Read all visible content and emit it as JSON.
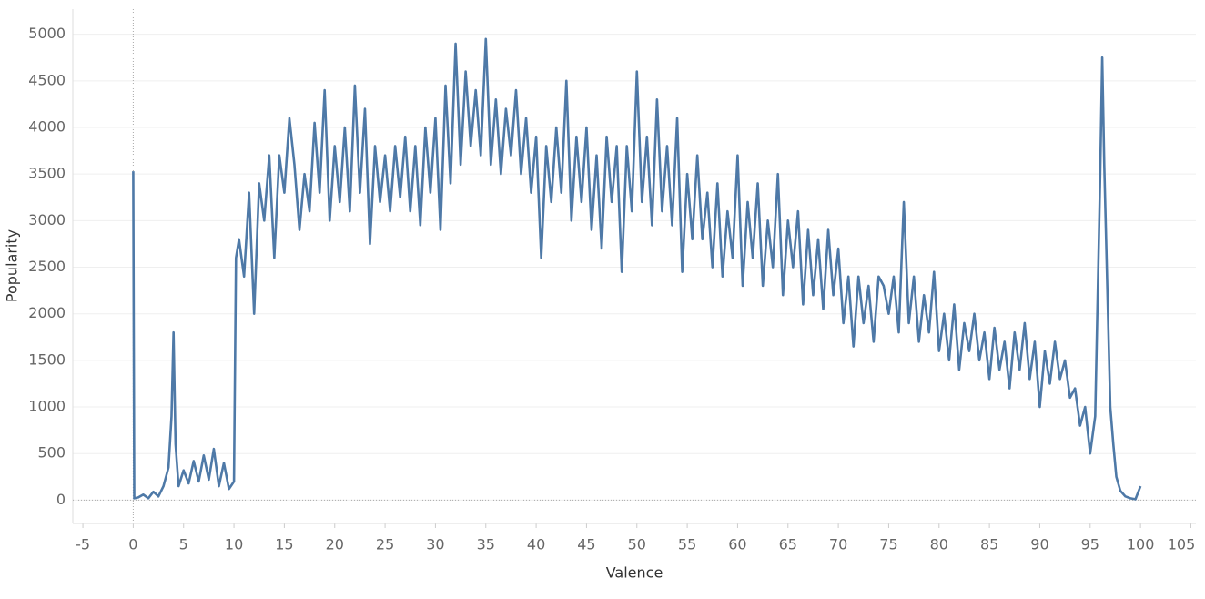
{
  "chart_data": {
    "type": "line",
    "x_label": "Valence",
    "y_label": "Popularity",
    "x": [
      0,
      0.1,
      0.5,
      1,
      1.5,
      2,
      2.5,
      3,
      3.5,
      3.8,
      4,
      4.2,
      4.5,
      5,
      5.5,
      6,
      6.5,
      7,
      7.5,
      8,
      8.5,
      9,
      9.5,
      10,
      10.2,
      10.5,
      11,
      11.5,
      12,
      12.5,
      13,
      13.5,
      14,
      14.5,
      15,
      15.5,
      16,
      16.5,
      17,
      17.5,
      18,
      18.5,
      19,
      19.5,
      20,
      20.5,
      21,
      21.5,
      22,
      22.5,
      23,
      23.5,
      24,
      24.5,
      25,
      25.5,
      26,
      26.5,
      27,
      27.5,
      28,
      28.5,
      29,
      29.5,
      30,
      30.5,
      31,
      31.5,
      32,
      32.5,
      33,
      33.5,
      34,
      34.5,
      35,
      35.5,
      36,
      36.5,
      37,
      37.5,
      38,
      38.5,
      39,
      39.5,
      40,
      40.5,
      41,
      41.5,
      42,
      42.5,
      43,
      43.5,
      44,
      44.5,
      45,
      45.5,
      46,
      46.5,
      47,
      47.5,
      48,
      48.5,
      49,
      49.5,
      50,
      50.5,
      51,
      51.5,
      52,
      52.5,
      53,
      53.5,
      54,
      54.5,
      55,
      55.5,
      56,
      56.5,
      57,
      57.5,
      58,
      58.5,
      59,
      59.5,
      60,
      60.5,
      61,
      61.5,
      62,
      62.5,
      63,
      63.5,
      64,
      64.5,
      65,
      65.5,
      66,
      66.5,
      67,
      67.5,
      68,
      68.5,
      69,
      69.5,
      70,
      70.5,
      71,
      71.5,
      72,
      72.5,
      73,
      73.5,
      74,
      74.5,
      75,
      75.5,
      76,
      76.5,
      77,
      77.5,
      78,
      78.5,
      79,
      79.5,
      80,
      80.5,
      81,
      81.5,
      82,
      82.5,
      83,
      83.5,
      84,
      84.5,
      85,
      85.5,
      86,
      86.5,
      87,
      87.5,
      88,
      88.5,
      89,
      89.5,
      90,
      90.5,
      91,
      91.5,
      92,
      92.5,
      93,
      93.5,
      94,
      94.5,
      95,
      95.5,
      96,
      96.2,
      96.4,
      96.7,
      97,
      97.3,
      97.6,
      98,
      98.5,
      99,
      99.5,
      100
    ],
    "series": [
      {
        "color": "#4e79a7",
        "values": [
          3530,
          20,
          30,
          60,
          20,
          90,
          40,
          150,
          350,
          900,
          1800,
          600,
          150,
          320,
          180,
          420,
          200,
          480,
          220,
          550,
          150,
          400,
          120,
          200,
          2600,
          2800,
          2400,
          3300,
          2000,
          3400,
          3000,
          3700,
          2600,
          3700,
          3300,
          4100,
          3600,
          2900,
          3500,
          3100,
          4050,
          3300,
          4400,
          3000,
          3800,
          3200,
          4000,
          3100,
          4450,
          3300,
          4200,
          2750,
          3800,
          3200,
          3700,
          3100,
          3800,
          3250,
          3900,
          3100,
          3800,
          2950,
          4000,
          3300,
          4100,
          2900,
          4450,
          3400,
          4900,
          3600,
          4600,
          3800,
          4400,
          3700,
          4950,
          3600,
          4300,
          3500,
          4200,
          3700,
          4400,
          3500,
          4100,
          3300,
          3900,
          2600,
          3800,
          3200,
          4000,
          3300,
          4500,
          3000,
          3900,
          3200,
          4000,
          2900,
          3700,
          2700,
          3900,
          3200,
          3800,
          2450,
          3800,
          3100,
          4600,
          3200,
          3900,
          2950,
          4300,
          3100,
          3800,
          2950,
          4100,
          2450,
          3500,
          2800,
          3700,
          2800,
          3300,
          2500,
          3400,
          2400,
          3100,
          2600,
          3700,
          2300,
          3200,
          2600,
          3400,
          2300,
          3000,
          2500,
          3500,
          2200,
          3000,
          2500,
          3100,
          2100,
          2900,
          2200,
          2800,
          2050,
          2900,
          2200,
          2700,
          1900,
          2400,
          1650,
          2400,
          1900,
          2300,
          1700,
          2400,
          2300,
          2000,
          2400,
          1800,
          3200,
          1900,
          2400,
          1700,
          2200,
          1800,
          2450,
          1600,
          2000,
          1500,
          2100,
          1400,
          1900,
          1600,
          2000,
          1500,
          1800,
          1300,
          1850,
          1400,
          1700,
          1200,
          1800,
          1400,
          1900,
          1300,
          1700,
          1000,
          1600,
          1250,
          1700,
          1300,
          1500,
          1100,
          1200,
          800,
          1000,
          500,
          900,
          3500,
          4750,
          3600,
          2300,
          1000,
          600,
          250,
          100,
          40,
          20,
          10,
          150
        ]
      }
    ],
    "xlim": [
      -6,
      105.5
    ],
    "ylim": [
      -250,
      5270
    ],
    "xticks": [
      -5,
      0,
      5,
      10,
      15,
      20,
      25,
      30,
      35,
      40,
      45,
      50,
      55,
      60,
      65,
      70,
      75,
      80,
      85,
      90,
      95,
      100,
      105
    ],
    "yticks": [
      0,
      500,
      1000,
      1500,
      2000,
      2500,
      3000,
      3500,
      4000,
      4500,
      5000
    ],
    "grid": true
  }
}
